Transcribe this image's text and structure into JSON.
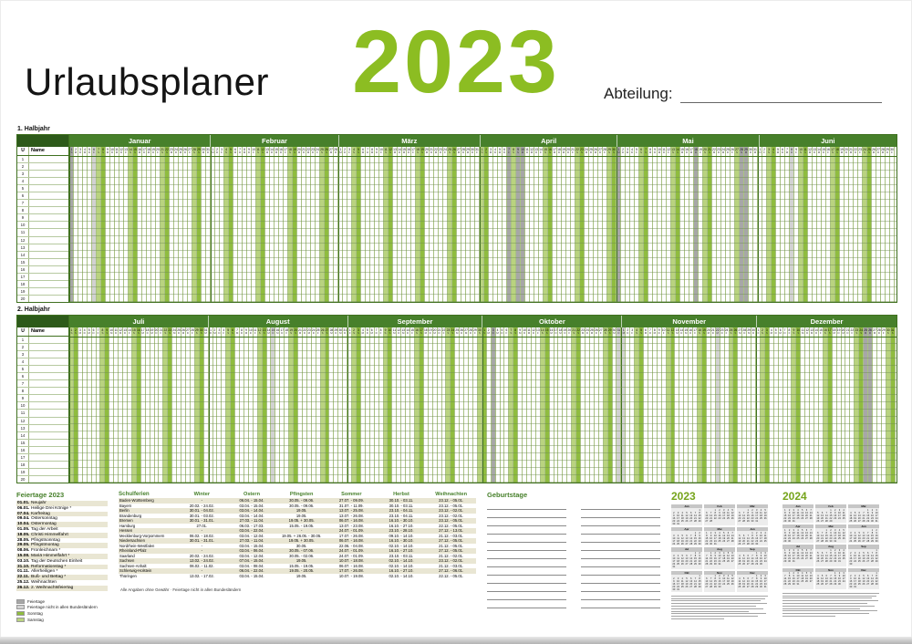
{
  "header": {
    "title": "Urlaubsplaner",
    "year": "2023",
    "abteilung_label": "Abteilung:"
  },
  "half1": {
    "label": "1. Halbjahr",
    "month_indices": [
      0,
      1,
      2,
      3,
      4,
      5
    ]
  },
  "half2": {
    "label": "2. Halbjahr",
    "month_indices": [
      6,
      7,
      8,
      9,
      10,
      11
    ]
  },
  "months": [
    {
      "name": "Januar",
      "days": 31
    },
    {
      "name": "Februar",
      "days": 28
    },
    {
      "name": "März",
      "days": 31
    },
    {
      "name": "April",
      "days": 30
    },
    {
      "name": "Mai",
      "days": 31
    },
    {
      "name": "Juni",
      "days": 30
    },
    {
      "name": "Juli",
      "days": 31
    },
    {
      "name": "August",
      "days": 31
    },
    {
      "name": "September",
      "days": 30
    },
    {
      "name": "Oktober",
      "days": 31
    },
    {
      "name": "November",
      "days": 30
    },
    {
      "name": "Dezember",
      "days": 31
    }
  ],
  "grid": {
    "u_label": "U",
    "name_label": "Name",
    "rows": 20,
    "year": 2023,
    "weekday_initials": [
      "S",
      "M",
      "D",
      "M",
      "D",
      "F",
      "S"
    ]
  },
  "holidays": {
    "national": [
      "01.01",
      "07.04",
      "09.04",
      "10.04",
      "01.05",
      "18.05",
      "28.05",
      "29.05",
      "03.10",
      "25.12",
      "26.12"
    ],
    "regional": [
      "06.01",
      "08.06",
      "15.08",
      "31.10",
      "01.11",
      "22.11"
    ]
  },
  "feiertage": {
    "heading": "Feiertage 2023",
    "items": [
      [
        "01.01.",
        "Neujahr"
      ],
      [
        "06.01.",
        "Heilige Drei Könige *"
      ],
      [
        "07.04.",
        "Karfreitag"
      ],
      [
        "09.04.",
        "Ostersonntag"
      ],
      [
        "10.04.",
        "Ostermontag"
      ],
      [
        "01.05.",
        "Tag der Arbeit"
      ],
      [
        "18.05.",
        "Christi Himmelfahrt"
      ],
      [
        "28.05.",
        "Pfingstsonntag"
      ],
      [
        "29.05.",
        "Pfingstmontag"
      ],
      [
        "08.06.",
        "Fronleichnam *"
      ],
      [
        "15.08.",
        "Mariä Himmelfahrt *"
      ],
      [
        "03.10.",
        "Tag der Deutschen Einheit"
      ],
      [
        "31.10.",
        "Reformationstag *"
      ],
      [
        "01.11.",
        "Allerheiligen *"
      ],
      [
        "22.11.",
        "Buß- und Bettag *"
      ],
      [
        "25.12.",
        "Weihnachten"
      ],
      [
        "26.12.",
        "2. Weihnachtsfeiertag"
      ]
    ]
  },
  "schulferien": {
    "heading": "Schulferien",
    "columns": [
      "Winter",
      "Ostern",
      "Pfingsten",
      "Sommer",
      "Herbst",
      "Weihnachten"
    ],
    "rows": [
      [
        "Baden-Württemberg",
        "-",
        "06.04. - 15.04.",
        "30.05. - 09.06.",
        "27.07. - 09.09.",
        "30.10. - 03.11.",
        "23.12. - 05.01."
      ],
      [
        "Bayern",
        "20.02. - 24.02.",
        "03.04. - 15.04.",
        "30.05. - 09.06.",
        "31.07. - 11.09.",
        "30.10. - 03.11.",
        "23.12. - 05.01."
      ],
      [
        "Berlin",
        "30.01. - 04.02.",
        "03.04. - 14.04.",
        "19.05.",
        "13.07. - 25.08.",
        "23.10. - 04.11.",
        "23.12. - 02.01."
      ],
      [
        "Brandenburg",
        "30.01. - 03.02.",
        "03.04. - 14.04.",
        "19.05.",
        "13.07. - 26.08.",
        "23.10. - 04.11.",
        "23.12. - 02.01."
      ],
      [
        "Bremen",
        "30.01. - 31.01.",
        "27.03. - 11.04.",
        "19.05. + 30.05.",
        "06.07. - 16.08.",
        "16.10. - 30.10.",
        "23.12. - 05.01."
      ],
      [
        "Hamburg",
        "27.01.",
        "06.03. - 17.03.",
        "15.05. - 19.05.",
        "13.07. - 23.08.",
        "16.10. - 27.10.",
        "22.12. - 05.01."
      ],
      [
        "Hessen",
        "-",
        "03.04. - 22.04.",
        "-",
        "24.07. - 01.09.",
        "23.10. - 28.10.",
        "27.12. - 13.01."
      ],
      [
        "Mecklenburg-Vorpommern",
        "06.02. - 18.02.",
        "03.04. - 12.04.",
        "19.05. + 26.05. - 30.05.",
        "17.07. - 26.08.",
        "09.10. - 14.10.",
        "21.12. - 03.01."
      ],
      [
        "Niedersachsen",
        "30.01. - 31.01.",
        "27.03. - 11.04.",
        "19.05. + 30.05.",
        "06.07. - 16.08.",
        "16.10. - 30.10.",
        "27.12. - 05.01."
      ],
      [
        "Nordrhein-Westfalen",
        "-",
        "03.04. - 15.04.",
        "30.05.",
        "22.06. - 04.08.",
        "02.10. - 14.10.",
        "21.12. - 05.01."
      ],
      [
        "Rheinland-Pfalz",
        "-",
        "03.04. - 06.04.",
        "30.05. - 07.06.",
        "24.07. - 01.09.",
        "16.10. - 27.10.",
        "27.12. - 05.01."
      ],
      [
        "Saarland",
        "20.02. - 24.02.",
        "03.04. - 12.04.",
        "30.05. - 02.06.",
        "24.07. - 01.09.",
        "23.10. - 03.11.",
        "21.12. - 02.01."
      ],
      [
        "Sachsen",
        "13.02. - 24.02.",
        "07.04. - 15.04.",
        "19.05.",
        "10.07. - 18.08.",
        "02.10. - 14.10.",
        "23.12. - 02.01."
      ],
      [
        "Sachsen-Anhalt",
        "06.02. - 11.02.",
        "03.04. - 08.04.",
        "15.05. - 19.05.",
        "06.07. - 16.08.",
        "02.10. - 14.10.",
        "21.12. - 03.01."
      ],
      [
        "Schleswig-Holstein",
        "-",
        "06.04. - 22.04.",
        "19.05. - 20.05.",
        "17.07. - 26.08.",
        "16.10. - 27.10.",
        "27.12. - 06.01."
      ],
      [
        "Thüringen",
        "13.02. - 17.02.",
        "03.04. - 15.04.",
        "19.05.",
        "10.07. - 19.08.",
        "02.10. - 14.10.",
        "22.12. - 05.01."
      ]
    ]
  },
  "geburtstage": {
    "heading": "Geburtstage",
    "columns": 2,
    "lines_per_column": 13
  },
  "mini": {
    "years": [
      "2023",
      "2024"
    ],
    "month_names": [
      "Jan",
      "Feb",
      "Mär",
      "Apr",
      "Mai",
      "Jun",
      "Jul",
      "Aug",
      "Sep",
      "Okt",
      "Nov",
      "Dez"
    ]
  },
  "legend": {
    "items": [
      {
        "label": "Feiertage",
        "color": "#a7a7a7"
      },
      {
        "label": "Feiertage nicht in allen Bundesländern",
        "color": "#d2d2d2"
      },
      {
        "label": "Sonntag",
        "color": "#8fbc3f"
      },
      {
        "label": "Samstag",
        "color": "#b9d37f"
      }
    ]
  },
  "disclaimer": "Alle Angaben ohne Gewähr · Feiertage nicht in allen Bundesländern",
  "colors": {
    "accent": "#8cbd22",
    "bar": "#47802b",
    "dark": "#2d5a1a",
    "saturday": "#b9d37f",
    "sunday": "#8fbc3f",
    "holiday": "#a7a7a7",
    "holiday_regional": "#d2d2d2",
    "beige": "#e9e6d3"
  }
}
